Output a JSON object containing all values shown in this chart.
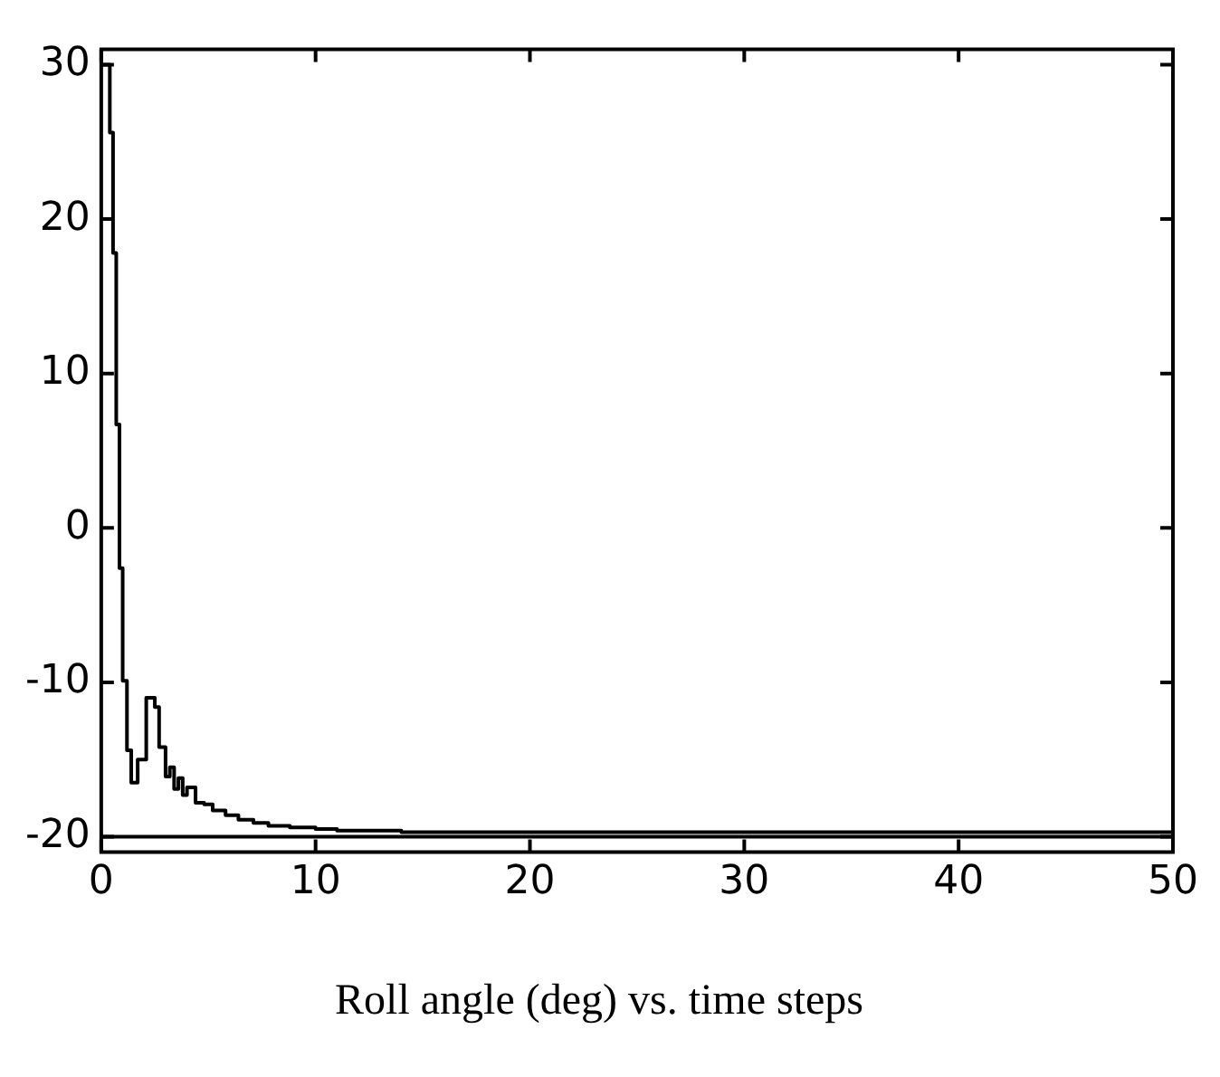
{
  "chart_data": {
    "type": "step",
    "title": "Roll angle (deg) vs. time steps",
    "x": [
      0,
      0.4,
      0.55,
      0.7,
      0.85,
      1.0,
      1.2,
      1.4,
      1.7,
      2.1,
      2.5,
      2.7,
      3.0,
      3.2,
      3.4,
      3.6,
      3.8,
      4.0,
      4.4,
      4.8,
      5.2,
      5.8,
      6.4,
      7.1,
      7.8,
      8.8,
      10,
      11,
      12,
      14,
      16,
      20,
      25,
      30,
      35,
      40,
      45,
      50
    ],
    "series": [
      {
        "color": "#000000",
        "values": [
          30,
          25.6,
          17.8,
          6.7,
          -2.6,
          -9.9,
          -14.4,
          -16.5,
          -15,
          -11,
          -11.6,
          -14.2,
          -16.1,
          -15.5,
          -16.9,
          -16.2,
          -17.3,
          -16.8,
          -17.8,
          -17.9,
          -18.3,
          -18.6,
          -18.9,
          -19.1,
          -19.3,
          -19.4,
          -19.5,
          -19.6,
          -19.6,
          -19.7,
          -19.7,
          -19.7,
          -19.7,
          -19.7,
          -19.7,
          -19.7,
          -19.7,
          -19.7
        ]
      }
    ],
    "xlim": [
      0,
      50
    ],
    "xticks": [
      0,
      10,
      20,
      30,
      40,
      50
    ],
    "ylim": [
      -21,
      31
    ],
    "yticks": [
      -20,
      -10,
      0,
      10,
      20,
      30
    ],
    "ref_lines": [
      {
        "axis": "y",
        "value": -20,
        "color": "#000000"
      }
    ],
    "grid": false,
    "legend": false,
    "marker": "none",
    "line_style": "solid"
  }
}
